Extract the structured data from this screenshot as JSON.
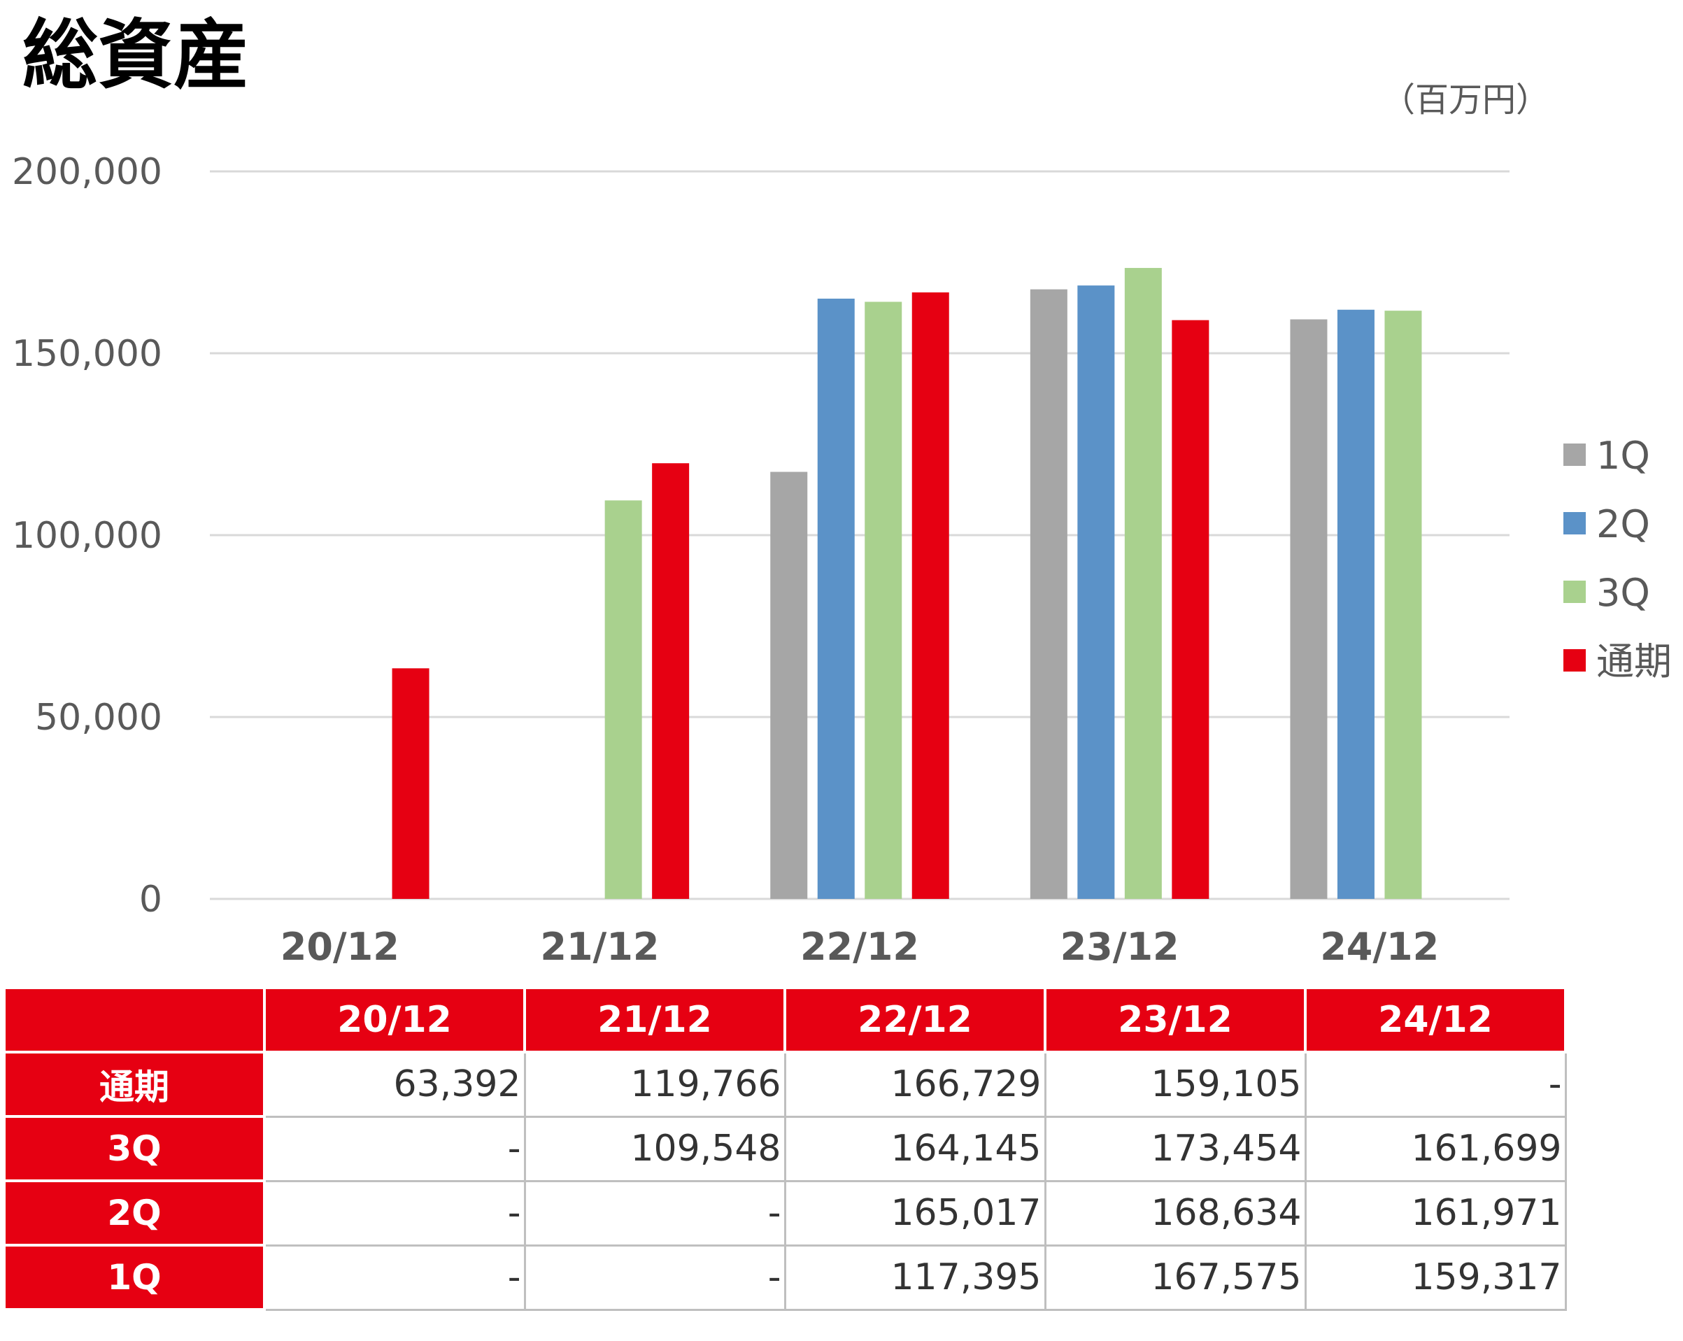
{
  "chart_data": {
    "type": "bar",
    "title": "総資産",
    "unit_label": "（百万円）",
    "categories": [
      "20/12",
      "21/12",
      "22/12",
      "23/12",
      "24/12"
    ],
    "series": [
      {
        "name": "1Q",
        "color": "#a6a6a6",
        "values": [
          null,
          null,
          117395,
          167575,
          159317
        ]
      },
      {
        "name": "2Q",
        "color": "#5b92c8",
        "values": [
          null,
          null,
          165017,
          168634,
          161971
        ]
      },
      {
        "name": "3Q",
        "color": "#a9d18e",
        "values": [
          null,
          109548,
          164145,
          173454,
          161699
        ]
      },
      {
        "name": "通期",
        "color": "#e60012",
        "values": [
          63392,
          119766,
          166729,
          159105,
          null
        ]
      }
    ],
    "ylim": [
      0,
      200000
    ],
    "yticks": [
      0,
      50000,
      100000,
      150000,
      200000
    ],
    "ytick_labels": [
      "0",
      "50,000",
      "100,000",
      "150,000",
      "200,000"
    ],
    "grid": true,
    "legend": "right"
  },
  "table": {
    "headers": [
      "",
      "20/12",
      "21/12",
      "22/12",
      "23/12",
      "24/12"
    ],
    "rows": [
      {
        "label": "通期",
        "cells": [
          "63,392",
          "119,766",
          "166,729",
          "159,105",
          "-"
        ]
      },
      {
        "label": "3Q",
        "cells": [
          "-",
          "109,548",
          "164,145",
          "173,454",
          "161,699"
        ]
      },
      {
        "label": "2Q",
        "cells": [
          "-",
          "-",
          "165,017",
          "168,634",
          "161,971"
        ]
      },
      {
        "label": "1Q",
        "cells": [
          "-",
          "-",
          "117,395",
          "167,575",
          "159,317"
        ]
      }
    ]
  },
  "colors": {
    "accent": "#e60012",
    "grid": "#d9d9d9",
    "text": "#595959"
  }
}
